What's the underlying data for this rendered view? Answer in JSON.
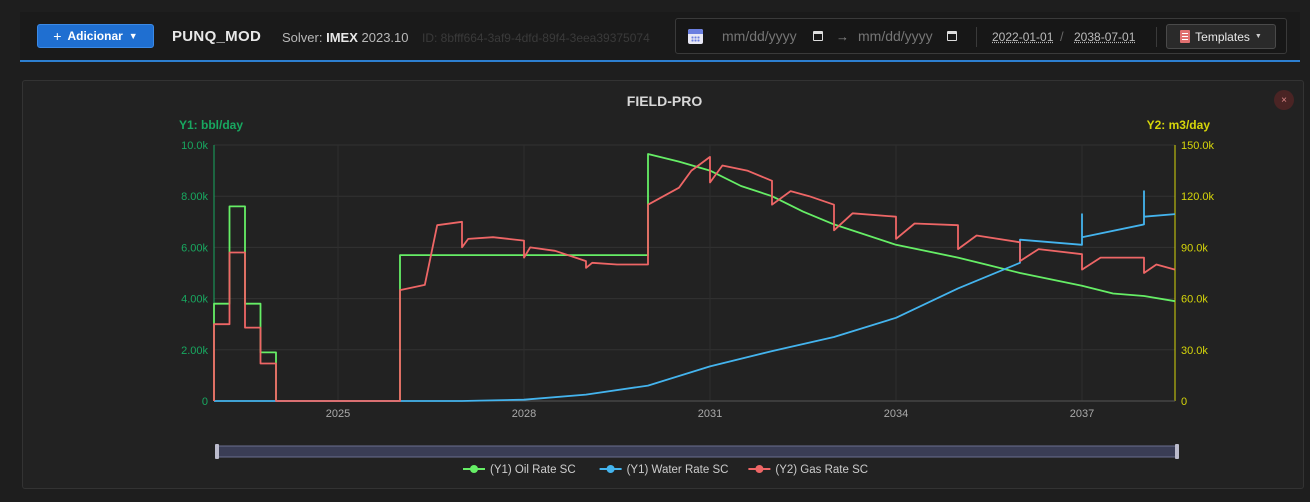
{
  "toolbar": {
    "add_label": "Adicionar",
    "model_name": "PUNQ_MOD",
    "solver_prefix": "Solver:",
    "solver_name": "IMEX",
    "solver_version": "2023.10",
    "model_id": "ID: 8bfff664-3af9-4dfd-89f4-3eea39375074"
  },
  "date_filter": {
    "start_placeholder": "mm/dd/yyyy",
    "end_placeholder": "mm/dd/yyyy",
    "arrow": "→",
    "range_start": "2022-01-01",
    "range_end": "2038-07-01",
    "separator": "/",
    "templates_label": "Templates"
  },
  "panel": {
    "close_label": "×"
  },
  "colors": {
    "oil": "#66ee66",
    "water": "#44b4ee",
    "gas": "#ee6666",
    "y1_axis": "#18a860",
    "y2_axis": "#d6d60a"
  },
  "chart_data": {
    "type": "line",
    "title": "FIELD-PRO",
    "y1label": "Y1: bbl/day",
    "y2label": "Y2: m3/day",
    "xlim": [
      2023.0,
      2038.5
    ],
    "y1lim": [
      0,
      10000
    ],
    "y2lim": [
      0,
      150000
    ],
    "x_ticks": [
      2025,
      2028,
      2031,
      2034,
      2037
    ],
    "x_tick_labels": [
      "2025",
      "2028",
      "2031",
      "2034",
      "2037"
    ],
    "y1_ticks": [
      0,
      2000,
      4000,
      6000,
      8000,
      10000
    ],
    "y1_tick_labels": [
      "0",
      "2.00k",
      "4.00k",
      "6.00k",
      "8.00k",
      "10.0k"
    ],
    "y2_ticks": [
      0,
      30000,
      60000,
      90000,
      120000,
      150000
    ],
    "y2_tick_labels": [
      "0",
      "30.0k",
      "60.0k",
      "90.0k",
      "120.0k",
      "150.0k"
    ],
    "series": [
      {
        "name": "(Y1) Oil Rate SC",
        "axis": "y1",
        "x": [
          2023.0,
          2023.0,
          2023.25,
          2023.25,
          2023.5,
          2023.5,
          2023.75,
          2023.75,
          2024.0,
          2024.0,
          2026.0,
          2026.0,
          2027.0,
          2027.0,
          2028.0,
          2028.0,
          2029.0,
          2029.0,
          2030.0,
          2030.0,
          2030.0,
          2030.5,
          2031.0,
          2031.5,
          2032.0,
          2032.5,
          2033.0,
          2034.0,
          2035.0,
          2035.5,
          2036.0,
          2037.0,
          2037.5,
          2038.0,
          2038.5
        ],
        "values": [
          0,
          3800,
          3800,
          7600,
          7600,
          3800,
          3800,
          1900,
          1900,
          0,
          0,
          5700,
          5700,
          5700,
          5700,
          5700,
          5700,
          5700,
          5700,
          7600,
          9650,
          9350,
          9000,
          8400,
          8000,
          7400,
          6900,
          6100,
          5600,
          5300,
          5000,
          4500,
          4200,
          4100,
          3900
        ]
      },
      {
        "name": "(Y1) Water Rate SC",
        "axis": "y1",
        "x": [
          2023.0,
          2027.0,
          2028.0,
          2029.0,
          2030.0,
          2031.0,
          2032.0,
          2033.0,
          2034.0,
          2035.0,
          2036.0,
          2036.0,
          2037.0,
          2037.0,
          2037.0,
          2038.0,
          2038.0,
          2038.0,
          2038.5
        ],
        "values": [
          0,
          0,
          50,
          250,
          600,
          1350,
          1950,
          2500,
          3250,
          4400,
          5400,
          6300,
          6100,
          7300,
          6400,
          6900,
          8200,
          7200,
          7300
        ]
      },
      {
        "name": "(Y2) Gas Rate SC",
        "axis": "y2",
        "x": [
          2023.0,
          2023.0,
          2023.25,
          2023.25,
          2023.5,
          2023.5,
          2023.75,
          2023.75,
          2024.0,
          2024.0,
          2026.0,
          2026.0,
          2026.4,
          2026.6,
          2027.0,
          2027.0,
          2027.1,
          2027.5,
          2028.0,
          2028.0,
          2028.1,
          2028.5,
          2029.0,
          2029.0,
          2029.1,
          2029.5,
          2030.0,
          2030.0,
          2030.5,
          2030.7,
          2031.0,
          2031.0,
          2031.2,
          2031.6,
          2032.0,
          2032.0,
          2032.3,
          2032.6,
          2033.0,
          2033.0,
          2033.3,
          2034.0,
          2034.0,
          2034.3,
          2035.0,
          2035.0,
          2035.3,
          2036.0,
          2036.0,
          2036.3,
          2037.0,
          2037.0,
          2037.3,
          2038.0,
          2038.0,
          2038.2,
          2038.5
        ],
        "values": [
          0,
          45000,
          45000,
          87000,
          87000,
          43000,
          43000,
          22000,
          22000,
          0,
          0,
          65000,
          68000,
          103000,
          105000,
          90000,
          95000,
          96000,
          94000,
          84000,
          90000,
          88000,
          82000,
          78000,
          81000,
          80000,
          80000,
          115000,
          125000,
          135000,
          143000,
          128000,
          138000,
          135000,
          129000,
          115000,
          123000,
          120000,
          115000,
          100000,
          110000,
          108000,
          95000,
          104000,
          103000,
          89000,
          97000,
          93000,
          82000,
          89000,
          86000,
          77000,
          84000,
          84000,
          75000,
          80000,
          77000
        ]
      }
    ],
    "legend_position": "bottom-center"
  }
}
